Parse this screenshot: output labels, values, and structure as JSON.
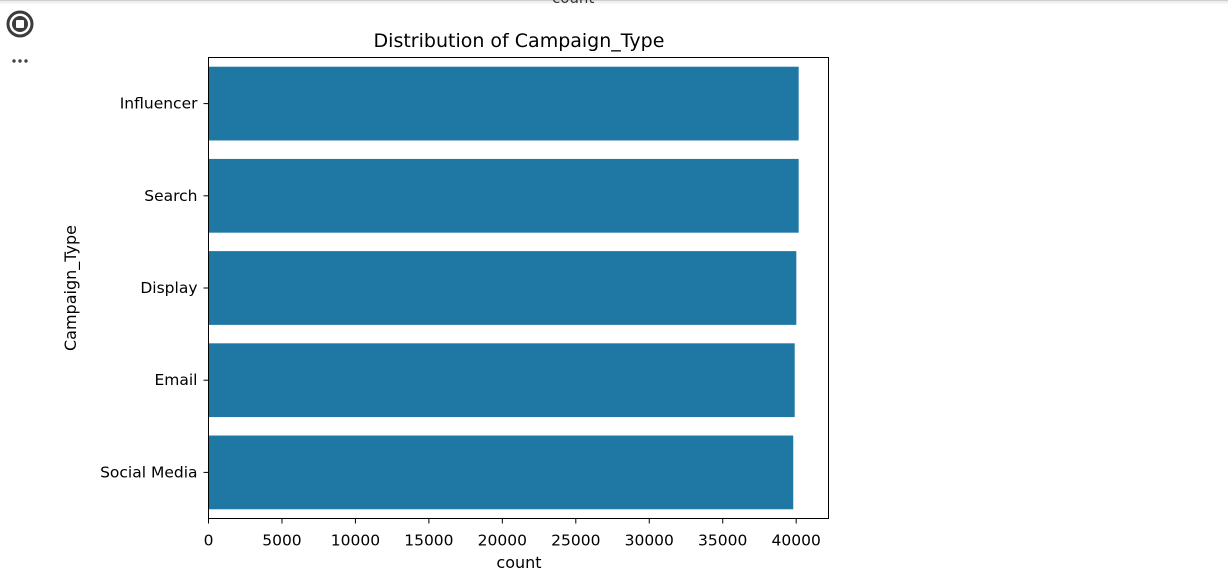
{
  "cell": {
    "previous_output_label": "count",
    "run_icon": "stop-circle-icon",
    "more_icon": "more-horizontal-icon"
  },
  "chart_data": {
    "type": "bar",
    "orientation": "horizontal",
    "title": "Distribution of Campaign_Type",
    "xlabel": "count",
    "ylabel": "Campaign_Type",
    "categories": [
      "Influencer",
      "Search",
      "Display",
      "Email",
      "Social Media"
    ],
    "values": [
      40170,
      40170,
      40010,
      39900,
      39800
    ],
    "xlim": [
      0,
      42200
    ],
    "xticks": [
      0,
      5000,
      10000,
      15000,
      20000,
      25000,
      30000,
      35000,
      40000
    ],
    "bar_color": "#1f77a4",
    "grid": false,
    "legend": "none"
  }
}
